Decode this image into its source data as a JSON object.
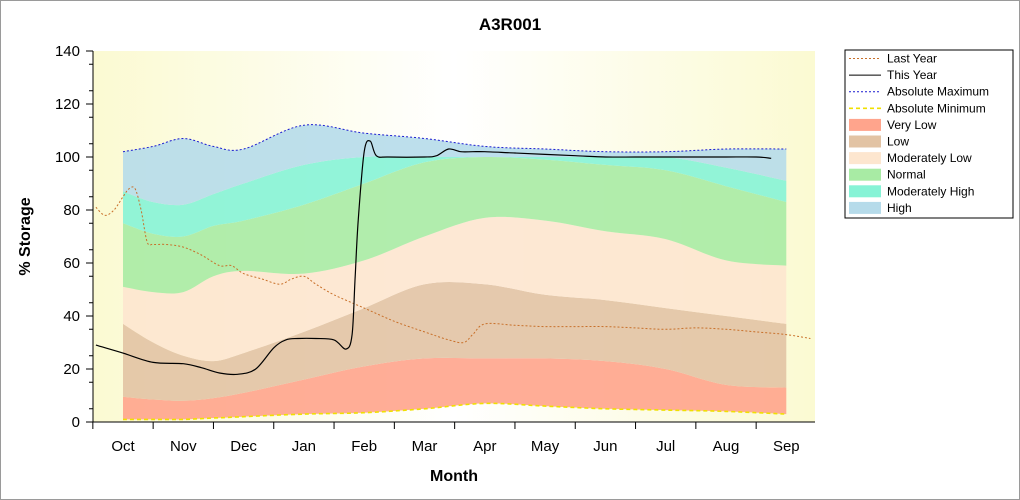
{
  "chart_data": {
    "type": "area",
    "title": "A3R001",
    "xlabel": "Month",
    "ylabel": "% Storage",
    "ylim": [
      0,
      140
    ],
    "yticks": [
      0,
      20,
      40,
      60,
      80,
      100,
      120,
      140
    ],
    "categories": [
      "Oct",
      "Nov",
      "Dec",
      "Jan",
      "Feb",
      "Mar",
      "Apr",
      "May",
      "Jun",
      "Jul",
      "Aug",
      "Sep"
    ],
    "legend_position": "right",
    "colors": {
      "plot_background": "#fdfbe0",
      "last_year": "#c8702a",
      "this_year": "#000000",
      "absolute_maximum": "#1a1ad0",
      "absolute_minimum": "#f0e000",
      "very_low": "#ffa48c",
      "low": "#e2c3a4",
      "moderately_low": "#fde6cf",
      "normal": "#a8eba4",
      "moderately_high": "#86f3d6",
      "high": "#b6dbea"
    },
    "band_bounds": {
      "x": [
        0,
        0.5,
        1,
        1.5,
        2,
        3,
        4,
        5,
        6,
        7,
        8,
        9,
        10,
        11
      ],
      "base": [
        1,
        1,
        1,
        1.5,
        2,
        3,
        3.5,
        5,
        7,
        6,
        5,
        4.5,
        4,
        3
      ],
      "very_low": [
        9.5,
        8.5,
        8,
        9,
        11,
        16,
        21,
        24,
        24,
        24,
        23,
        20,
        14,
        13
      ],
      "low": [
        37,
        30,
        25,
        23,
        26,
        34,
        43,
        52,
        52,
        48,
        46,
        43,
        40,
        37
      ],
      "mod_low": [
        51,
        49,
        49,
        55,
        57,
        56,
        61,
        70,
        77,
        76,
        72,
        69,
        61,
        59
      ],
      "normal": [
        75,
        71,
        70,
        74,
        76,
        82,
        90,
        98,
        100,
        99,
        97,
        95,
        89,
        83
      ],
      "mod_high": [
        87,
        83,
        82,
        86,
        90,
        97,
        100,
        100,
        100,
        100,
        100,
        100,
        96,
        91
      ],
      "high": [
        102,
        104,
        107,
        104,
        103,
        112,
        109,
        107,
        104,
        103,
        102,
        102,
        103,
        103
      ]
    },
    "series": [
      {
        "name": "Last Year",
        "x": [
          -0.45,
          -0.3,
          -0.15,
          0,
          0.1,
          0.2,
          0.3,
          0.4,
          0.5,
          0.7,
          1,
          1.3,
          1.6,
          1.8,
          2,
          2.3,
          2.6,
          2.8,
          3,
          3.2,
          3.5,
          4,
          4.5,
          5,
          5.4,
          5.65,
          5.8,
          6,
          6.5,
          7,
          7.5,
          8,
          8.5,
          9,
          9.5,
          10,
          10.5,
          11,
          11.4
        ],
        "y": [
          81,
          78,
          80,
          85,
          88,
          88,
          80,
          68,
          67,
          67,
          66,
          63,
          59,
          59,
          56,
          54,
          52,
          54,
          55,
          52,
          48,
          43,
          38,
          34,
          31,
          30,
          33,
          37,
          36.5,
          36,
          36,
          36,
          35.5,
          35,
          35.5,
          35,
          34,
          33,
          31.5
        ]
      },
      {
        "name": "This Year",
        "x": [
          -0.45,
          0,
          0.5,
          1,
          1.3,
          1.6,
          1.9,
          2.2,
          2.5,
          2.7,
          2.9,
          3.2,
          3.5,
          3.7,
          3.8,
          3.85,
          3.9,
          4,
          4.1,
          4.2,
          4.4,
          5,
          5.2,
          5.4,
          5.6,
          5.8,
          6,
          6.5,
          7,
          7.5,
          8,
          8.5,
          9,
          9.5,
          10,
          10.5,
          10.75
        ],
        "y": [
          29,
          26,
          22.5,
          22,
          20.5,
          18.5,
          18,
          20,
          28,
          31,
          31.5,
          31.5,
          31,
          27.5,
          33,
          55,
          76,
          102,
          106,
          100.5,
          100,
          100,
          100.5,
          103,
          102,
          102,
          102,
          101.5,
          101,
          100.5,
          100,
          100,
          100,
          100,
          100,
          100,
          99.5
        ]
      },
      {
        "name": "Absolute Maximum",
        "x": [
          0,
          0.5,
          1,
          1.5,
          2,
          3,
          4,
          5,
          6,
          7,
          8,
          9,
          10,
          11
        ],
        "y": [
          102,
          104,
          107,
          104,
          103,
          112,
          109,
          107,
          104,
          103,
          102,
          102,
          103,
          103
        ]
      },
      {
        "name": "Absolute Minimum",
        "x": [
          0,
          0.5,
          1,
          1.5,
          2,
          3,
          4,
          5,
          6,
          7,
          8,
          9,
          10,
          11
        ],
        "y": [
          1,
          1,
          1,
          1.5,
          2,
          3,
          3.5,
          5,
          7,
          6,
          5,
          4.5,
          4,
          3
        ]
      }
    ],
    "legend": [
      {
        "label": "Last Year",
        "kind": "line",
        "color": "#c8702a",
        "dash": "2,2"
      },
      {
        "label": "This Year",
        "kind": "line",
        "color": "#000000",
        "dash": ""
      },
      {
        "label": "Absolute Maximum",
        "kind": "line",
        "color": "#1a1ad0",
        "dash": "2,2"
      },
      {
        "label": "Absolute Minimum",
        "kind": "line",
        "color": "#f0e000",
        "dash": "4,3"
      },
      {
        "label": "Very Low",
        "kind": "area",
        "color": "#ffa48c"
      },
      {
        "label": "Low",
        "kind": "area",
        "color": "#e2c3a4"
      },
      {
        "label": "Moderately Low",
        "kind": "area",
        "color": "#fde6cf"
      },
      {
        "label": "Normal",
        "kind": "area",
        "color": "#a8eba4"
      },
      {
        "label": "Moderately High",
        "kind": "area",
        "color": "#86f3d6"
      },
      {
        "label": "High",
        "kind": "area",
        "color": "#b6dbea"
      }
    ]
  }
}
